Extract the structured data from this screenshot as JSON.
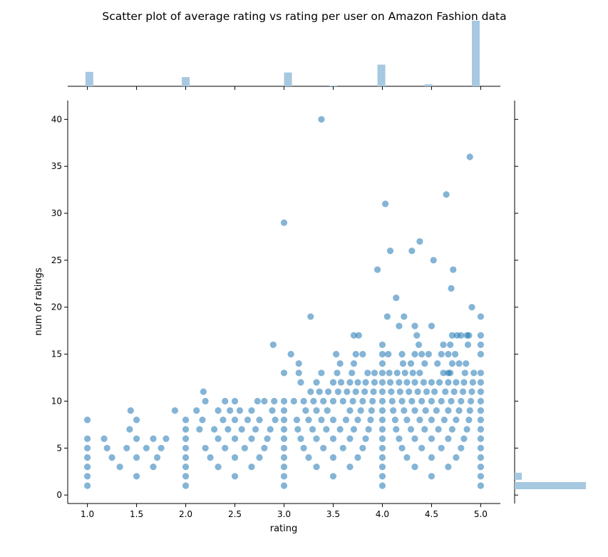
{
  "chart_data": {
    "type": "scatter",
    "title": "Scatter plot of average rating vs rating per user on Amazon Fashion data",
    "xlabel": "rating",
    "ylabel": "num of ratings",
    "xlim": [
      0.8,
      5.2
    ],
    "ylim": [
      -0.9,
      42
    ],
    "xticks": [
      1.0,
      1.5,
      2.0,
      2.5,
      3.0,
      3.5,
      4.0,
      4.5,
      5.0
    ],
    "xtick_labels": [
      "1.0",
      "1.5",
      "2.0",
      "2.5",
      "3.0",
      "3.5",
      "4.0",
      "4.5",
      "5.0"
    ],
    "yticks": [
      0,
      5,
      10,
      15,
      20,
      25,
      30,
      35,
      40
    ],
    "ytick_labels": [
      "0",
      "5",
      "10",
      "15",
      "20",
      "25",
      "30",
      "35",
      "40"
    ],
    "grid": false,
    "marginal_histograms": true,
    "point_color": "#1f77b4",
    "point_alpha": 0.55,
    "hist_color": "#a6c8e0",
    "points": [
      [
        1.0,
        1
      ],
      [
        1.0,
        2
      ],
      [
        1.0,
        3
      ],
      [
        1.0,
        4
      ],
      [
        1.0,
        5
      ],
      [
        1.0,
        6
      ],
      [
        1.0,
        8
      ],
      [
        1.17,
        6
      ],
      [
        1.2,
        5
      ],
      [
        1.25,
        4
      ],
      [
        1.33,
        3
      ],
      [
        1.4,
        5
      ],
      [
        1.43,
        7
      ],
      [
        1.44,
        9
      ],
      [
        1.5,
        2
      ],
      [
        1.5,
        4
      ],
      [
        1.5,
        6
      ],
      [
        1.5,
        8
      ],
      [
        1.6,
        5
      ],
      [
        1.67,
        3
      ],
      [
        1.67,
        6
      ],
      [
        1.71,
        4
      ],
      [
        1.75,
        5
      ],
      [
        1.8,
        6
      ],
      [
        1.89,
        9
      ],
      [
        2.0,
        1
      ],
      [
        2.0,
        2
      ],
      [
        2.0,
        3
      ],
      [
        2.0,
        4
      ],
      [
        2.0,
        5
      ],
      [
        2.0,
        6
      ],
      [
        2.0,
        7
      ],
      [
        2.0,
        8
      ],
      [
        2.11,
        9
      ],
      [
        2.14,
        7
      ],
      [
        2.17,
        8
      ],
      [
        2.18,
        11
      ],
      [
        2.2,
        10
      ],
      [
        2.2,
        5
      ],
      [
        2.25,
        4
      ],
      [
        2.29,
        7
      ],
      [
        2.33,
        3
      ],
      [
        2.33,
        6
      ],
      [
        2.33,
        9
      ],
      [
        2.38,
        8
      ],
      [
        2.4,
        5
      ],
      [
        2.4,
        10
      ],
      [
        2.43,
        7
      ],
      [
        2.45,
        9
      ],
      [
        2.5,
        2
      ],
      [
        2.5,
        4
      ],
      [
        2.5,
        6
      ],
      [
        2.5,
        8
      ],
      [
        2.5,
        10
      ],
      [
        2.55,
        9
      ],
      [
        2.57,
        7
      ],
      [
        2.6,
        5
      ],
      [
        2.63,
        8
      ],
      [
        2.67,
        3
      ],
      [
        2.67,
        6
      ],
      [
        2.67,
        9
      ],
      [
        2.71,
        7
      ],
      [
        2.73,
        10
      ],
      [
        2.75,
        4
      ],
      [
        2.75,
        8
      ],
      [
        2.8,
        5
      ],
      [
        2.8,
        10
      ],
      [
        2.83,
        6
      ],
      [
        2.86,
        7
      ],
      [
        2.88,
        9
      ],
      [
        2.89,
        16
      ],
      [
        2.9,
        10
      ],
      [
        2.91,
        8
      ],
      [
        3.0,
        1
      ],
      [
        3.0,
        2
      ],
      [
        3.0,
        3
      ],
      [
        3.0,
        4
      ],
      [
        3.0,
        5
      ],
      [
        3.0,
        6
      ],
      [
        3.0,
        7
      ],
      [
        3.0,
        8
      ],
      [
        3.0,
        9
      ],
      [
        3.0,
        10
      ],
      [
        3.0,
        13
      ],
      [
        3.0,
        29
      ],
      [
        3.07,
        15
      ],
      [
        3.1,
        10
      ],
      [
        3.13,
        8
      ],
      [
        3.14,
        7
      ],
      [
        3.15,
        13
      ],
      [
        3.15,
        14
      ],
      [
        3.17,
        6
      ],
      [
        3.17,
        12
      ],
      [
        3.2,
        5
      ],
      [
        3.2,
        10
      ],
      [
        3.22,
        9
      ],
      [
        3.25,
        4
      ],
      [
        3.25,
        8
      ],
      [
        3.27,
        11
      ],
      [
        3.27,
        19
      ],
      [
        3.29,
        7
      ],
      [
        3.3,
        10
      ],
      [
        3.33,
        3
      ],
      [
        3.33,
        6
      ],
      [
        3.33,
        9
      ],
      [
        3.33,
        12
      ],
      [
        3.36,
        11
      ],
      [
        3.38,
        8
      ],
      [
        3.38,
        13
      ],
      [
        3.38,
        40
      ],
      [
        3.4,
        5
      ],
      [
        3.4,
        10
      ],
      [
        3.43,
        7
      ],
      [
        3.44,
        9
      ],
      [
        3.45,
        11
      ],
      [
        3.5,
        2
      ],
      [
        3.5,
        4
      ],
      [
        3.5,
        6
      ],
      [
        3.5,
        8
      ],
      [
        3.5,
        10
      ],
      [
        3.5,
        12
      ],
      [
        3.53,
        15
      ],
      [
        3.54,
        13
      ],
      [
        3.55,
        11
      ],
      [
        3.57,
        7
      ],
      [
        3.57,
        14
      ],
      [
        3.58,
        12
      ],
      [
        3.6,
        5
      ],
      [
        3.6,
        10
      ],
      [
        3.63,
        8
      ],
      [
        3.64,
        11
      ],
      [
        3.67,
        3
      ],
      [
        3.67,
        6
      ],
      [
        3.67,
        9
      ],
      [
        3.67,
        12
      ],
      [
        3.69,
        13
      ],
      [
        3.7,
        10
      ],
      [
        3.71,
        7
      ],
      [
        3.71,
        14
      ],
      [
        3.71,
        17
      ],
      [
        3.73,
        11
      ],
      [
        3.73,
        15
      ],
      [
        3.75,
        4
      ],
      [
        3.75,
        8
      ],
      [
        3.75,
        12
      ],
      [
        3.76,
        17
      ],
      [
        3.78,
        9
      ],
      [
        3.8,
        5
      ],
      [
        3.8,
        10
      ],
      [
        3.8,
        15
      ],
      [
        3.82,
        11
      ],
      [
        3.83,
        6
      ],
      [
        3.83,
        12
      ],
      [
        3.85,
        13
      ],
      [
        3.86,
        7
      ],
      [
        3.88,
        8
      ],
      [
        3.89,
        9
      ],
      [
        3.9,
        10
      ],
      [
        3.91,
        11
      ],
      [
        3.92,
        12
      ],
      [
        3.92,
        13
      ],
      [
        3.95,
        24
      ],
      [
        4.0,
        1
      ],
      [
        4.0,
        2
      ],
      [
        4.0,
        3
      ],
      [
        4.0,
        4
      ],
      [
        4.0,
        5
      ],
      [
        4.0,
        6
      ],
      [
        4.0,
        7
      ],
      [
        4.0,
        8
      ],
      [
        4.0,
        9
      ],
      [
        4.0,
        10
      ],
      [
        4.0,
        11
      ],
      [
        4.0,
        12
      ],
      [
        4.0,
        13
      ],
      [
        4.0,
        14
      ],
      [
        4.0,
        15
      ],
      [
        4.0,
        16
      ],
      [
        4.03,
        31
      ],
      [
        4.05,
        19
      ],
      [
        4.06,
        15
      ],
      [
        4.07,
        13
      ],
      [
        4.08,
        12
      ],
      [
        4.08,
        26
      ],
      [
        4.09,
        11
      ],
      [
        4.1,
        10
      ],
      [
        4.11,
        9
      ],
      [
        4.13,
        8
      ],
      [
        4.14,
        21
      ],
      [
        4.14,
        7
      ],
      [
        4.15,
        13
      ],
      [
        4.17,
        6
      ],
      [
        4.17,
        12
      ],
      [
        4.17,
        18
      ],
      [
        4.18,
        11
      ],
      [
        4.2,
        5
      ],
      [
        4.2,
        10
      ],
      [
        4.2,
        15
      ],
      [
        4.21,
        14
      ],
      [
        4.22,
        9
      ],
      [
        4.22,
        19
      ],
      [
        4.23,
        13
      ],
      [
        4.25,
        4
      ],
      [
        4.25,
        8
      ],
      [
        4.25,
        12
      ],
      [
        4.27,
        11
      ],
      [
        4.29,
        7
      ],
      [
        4.29,
        14
      ],
      [
        4.3,
        10
      ],
      [
        4.3,
        26
      ],
      [
        4.31,
        13
      ],
      [
        4.33,
        3
      ],
      [
        4.33,
        6
      ],
      [
        4.33,
        9
      ],
      [
        4.33,
        12
      ],
      [
        4.33,
        15
      ],
      [
        4.33,
        18
      ],
      [
        4.35,
        17
      ],
      [
        4.36,
        11
      ],
      [
        4.37,
        16
      ],
      [
        4.38,
        8
      ],
      [
        4.38,
        13
      ],
      [
        4.38,
        27
      ],
      [
        4.4,
        5
      ],
      [
        4.4,
        10
      ],
      [
        4.4,
        15
      ],
      [
        4.42,
        12
      ],
      [
        4.43,
        7
      ],
      [
        4.43,
        14
      ],
      [
        4.44,
        9
      ],
      [
        4.45,
        11
      ],
      [
        4.47,
        15
      ],
      [
        4.5,
        2
      ],
      [
        4.5,
        4
      ],
      [
        4.5,
        6
      ],
      [
        4.5,
        8
      ],
      [
        4.5,
        10
      ],
      [
        4.5,
        12
      ],
      [
        4.5,
        18
      ],
      [
        4.52,
        25
      ],
      [
        4.53,
        11
      ],
      [
        4.55,
        9
      ],
      [
        4.56,
        14
      ],
      [
        4.57,
        7
      ],
      [
        4.58,
        12
      ],
      [
        4.6,
        5
      ],
      [
        4.6,
        10
      ],
      [
        4.6,
        15
      ],
      [
        4.62,
        13
      ],
      [
        4.62,
        16
      ],
      [
        4.63,
        8
      ],
      [
        4.64,
        11
      ],
      [
        4.65,
        32
      ],
      [
        4.67,
        3
      ],
      [
        4.67,
        6
      ],
      [
        4.67,
        9
      ],
      [
        4.67,
        12
      ],
      [
        4.67,
        13
      ],
      [
        4.67,
        15
      ],
      [
        4.69,
        13
      ],
      [
        4.69,
        16
      ],
      [
        4.7,
        10
      ],
      [
        4.7,
        22
      ],
      [
        4.71,
        7
      ],
      [
        4.71,
        14
      ],
      [
        4.71,
        17
      ],
      [
        4.72,
        24
      ],
      [
        4.73,
        11
      ],
      [
        4.74,
        15
      ],
      [
        4.75,
        4
      ],
      [
        4.75,
        8
      ],
      [
        4.75,
        12
      ],
      [
        4.76,
        17
      ],
      [
        4.78,
        9
      ],
      [
        4.78,
        14
      ],
      [
        4.8,
        5
      ],
      [
        4.8,
        10
      ],
      [
        4.8,
        17
      ],
      [
        4.82,
        11
      ],
      [
        4.83,
        6
      ],
      [
        4.83,
        12
      ],
      [
        4.84,
        13
      ],
      [
        4.85,
        14
      ],
      [
        4.86,
        7
      ],
      [
        4.86,
        17
      ],
      [
        4.87,
        16
      ],
      [
        4.88,
        8
      ],
      [
        4.88,
        17
      ],
      [
        4.89,
        9
      ],
      [
        4.89,
        36
      ],
      [
        4.9,
        10
      ],
      [
        4.91,
        11
      ],
      [
        4.91,
        20
      ],
      [
        4.92,
        12
      ],
      [
        4.93,
        13
      ],
      [
        5.0,
        1
      ],
      [
        5.0,
        2
      ],
      [
        5.0,
        3
      ],
      [
        5.0,
        4
      ],
      [
        5.0,
        5
      ],
      [
        5.0,
        6
      ],
      [
        5.0,
        7
      ],
      [
        5.0,
        8
      ],
      [
        5.0,
        9
      ],
      [
        5.0,
        10
      ],
      [
        5.0,
        11
      ],
      [
        5.0,
        12
      ],
      [
        5.0,
        13
      ],
      [
        5.0,
        15
      ],
      [
        5.0,
        16
      ],
      [
        5.0,
        17
      ],
      [
        5.0,
        19
      ]
    ],
    "x_marginal_histogram": {
      "bin_centers": [
        1.02,
        2.0,
        3.04,
        3.5,
        3.99,
        4.47,
        4.95
      ],
      "heights": [
        0.22,
        0.14,
        0.21,
        0.01,
        0.33,
        0.03,
        1.0
      ]
    },
    "y_marginal_histogram": {
      "bin_centers": [
        1.0,
        2.0
      ],
      "heights": [
        1.0,
        0.1
      ]
    }
  }
}
